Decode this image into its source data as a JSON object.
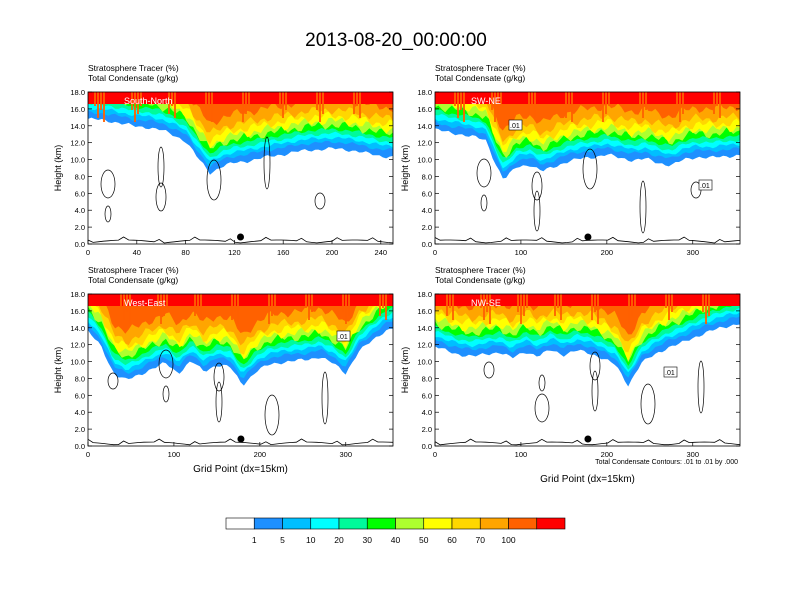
{
  "title": "2013-08-20_00:00:00",
  "colors": {
    "fill_levels": [
      "#ffffff",
      "#1e90ff",
      "#00bfff",
      "#00ffff",
      "#00fa9a",
      "#00ff00",
      "#adff2f",
      "#ffff00",
      "#ffd700",
      "#ffa500",
      "#ff6100",
      "#ff0000"
    ],
    "contour": "#000000",
    "terrain": "#000000"
  },
  "colorbar": {
    "labels": [
      "1",
      "5",
      "10",
      "20",
      "30",
      "40",
      "50",
      "60",
      "70",
      "100"
    ]
  },
  "footnote": "Total Condensate Contours: .01 to .01 by .000",
  "chart_data": [
    {
      "type": "heatmap",
      "panel_label": "South-North",
      "header_line1": "Stratosphere Tracer   (%)",
      "header_line2": "Total Condensate   (g/kg)",
      "ylabel": "Height (km)",
      "xlabel": "",
      "yticks": [
        "0.0",
        "2.0",
        "4.0",
        "6.0",
        "8.0",
        "10.0",
        "12.0",
        "14.0",
        "16.0",
        "18.0"
      ],
      "ylim": [
        0,
        18
      ],
      "xticks": [
        0,
        40,
        80,
        120,
        160,
        200,
        240
      ],
      "xlim": [
        0,
        250
      ],
      "contour_labels": [],
      "marker_x": 125,
      "boundary": {
        "x": [
          0,
          10,
          20,
          30,
          40,
          50,
          60,
          70,
          80,
          90,
          100,
          110,
          120,
          130,
          140,
          150,
          160,
          170,
          180,
          190,
          200,
          210,
          220,
          230,
          240,
          250
        ],
        "y": [
          14.8,
          14.7,
          14.5,
          14.2,
          13.9,
          13.8,
          13.5,
          12.9,
          12.2,
          10.2,
          8.4,
          9.2,
          9.6,
          9.8,
          10.1,
          10.4,
          10.6,
          10.9,
          11.1,
          11.2,
          11.3,
          11.2,
          11.0,
          10.7,
          10.4,
          10.3
        ]
      }
    },
    {
      "type": "heatmap",
      "panel_label": "SW-NE",
      "header_line1": "Stratosphere Tracer   (%)",
      "header_line2": "Total Condensate   (g/kg)",
      "ylabel": "Height (km)",
      "xlabel": "",
      "yticks": [
        "0.0",
        "2.0",
        "4.0",
        "6.0",
        "8.0",
        "10.0",
        "12.0",
        "14.0",
        "16.0",
        "18.0"
      ],
      "ylim": [
        0,
        18
      ],
      "xticks": [
        0,
        100,
        200,
        300
      ],
      "xlim": [
        0,
        355
      ],
      "contour_labels": [
        ".01",
        ".01"
      ],
      "marker_x": 178,
      "boundary": {
        "x": [
          0,
          15,
          30,
          45,
          60,
          70,
          80,
          95,
          110,
          125,
          140,
          155,
          170,
          185,
          200,
          215,
          230,
          245,
          260,
          275,
          290,
          305,
          320,
          340,
          355
        ],
        "y": [
          13.6,
          13.2,
          13.0,
          12.7,
          12.2,
          9.6,
          7.6,
          9.1,
          9.4,
          8.6,
          9.2,
          9.8,
          10.1,
          10.3,
          10.6,
          10.2,
          9.9,
          10.1,
          9.6,
          9.3,
          10.0,
          10.3,
          10.2,
          10.4,
          10.5
        ]
      }
    },
    {
      "type": "heatmap",
      "panel_label": "West-East",
      "header_line1": "Stratosphere Tracer   (%)",
      "header_line2": "Total Condensate   (g/kg)",
      "ylabel": "Height (km)",
      "xlabel": "Grid Point (dx=15km)",
      "yticks": [
        "0.0",
        "2.0",
        "4.0",
        "6.0",
        "8.0",
        "10.0",
        "12.0",
        "14.0",
        "16.0",
        "18.0"
      ],
      "ylim": [
        0,
        18
      ],
      "xticks": [
        0,
        100,
        200,
        300
      ],
      "xlim": [
        0,
        355
      ],
      "contour_labels": [
        ".01"
      ],
      "marker_x": 178,
      "boundary": {
        "x": [
          0,
          15,
          30,
          45,
          60,
          75,
          90,
          105,
          120,
          135,
          150,
          165,
          180,
          195,
          210,
          225,
          240,
          255,
          270,
          285,
          300,
          315,
          330,
          345,
          355
        ],
        "y": [
          13.6,
          11.8,
          8.6,
          7.8,
          8.4,
          9.2,
          9.8,
          8.6,
          10.1,
          8.8,
          9.6,
          9.4,
          7.2,
          8.8,
          9.6,
          9.9,
          10.1,
          10.2,
          10.6,
          9.8,
          8.6,
          11.2,
          12.4,
          13.6,
          14.0
        ]
      }
    },
    {
      "type": "heatmap",
      "panel_label": "NW-SE",
      "header_line1": "Stratosphere Tracer   (%)",
      "header_line2": "Total Condensate   (g/kg)",
      "ylabel": "Height (km)",
      "xlabel": "Grid Point (dx=15km)",
      "yticks": [
        "0.0",
        "2.0",
        "4.0",
        "6.0",
        "8.0",
        "10.0",
        "12.0",
        "14.0",
        "16.0",
        "18.0"
      ],
      "ylim": [
        0,
        18
      ],
      "xticks": [
        0,
        100,
        200,
        300
      ],
      "xlim": [
        0,
        355
      ],
      "contour_labels": [
        ".01"
      ],
      "marker_x": 178,
      "boundary": {
        "x": [
          0,
          15,
          30,
          45,
          60,
          75,
          90,
          105,
          120,
          135,
          150,
          165,
          180,
          195,
          210,
          225,
          240,
          255,
          270,
          285,
          300,
          315,
          330,
          345,
          355
        ],
        "y": [
          11.8,
          11.2,
          10.8,
          10.6,
          10.9,
          11.1,
          10.4,
          11.2,
          10.6,
          11.4,
          10.8,
          11.3,
          11.0,
          10.4,
          9.6,
          7.2,
          9.8,
          10.8,
          11.6,
          12.1,
          12.8,
          13.4,
          13.9,
          14.3,
          14.5
        ]
      }
    }
  ]
}
